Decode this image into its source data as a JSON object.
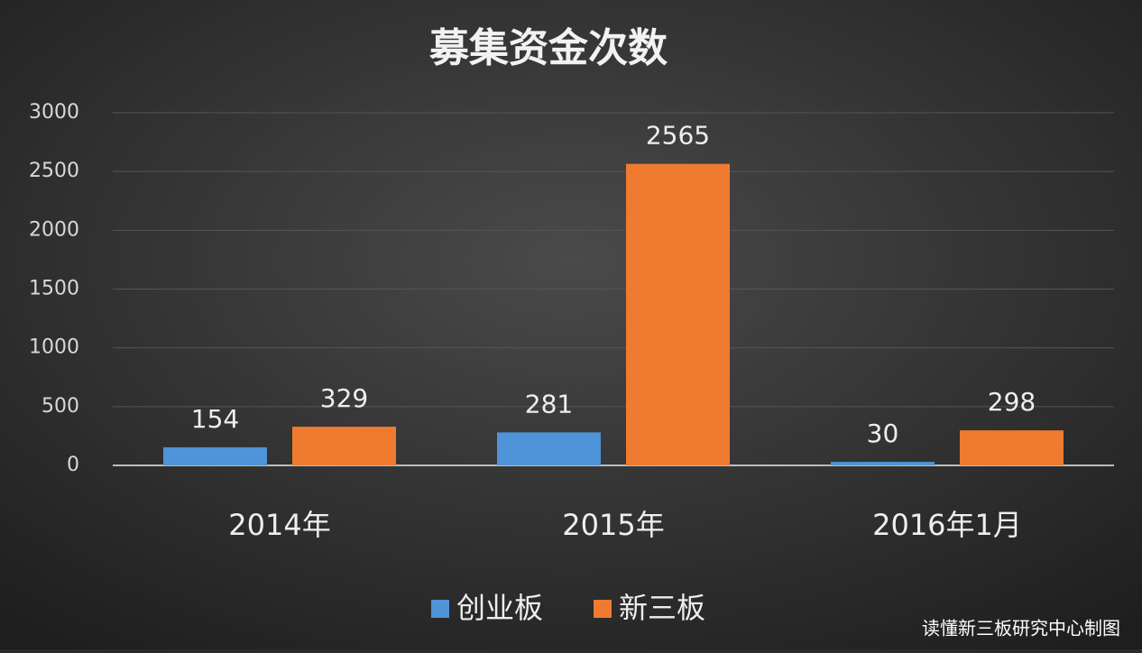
{
  "chart_data": {
    "type": "bar",
    "title": "募集资金次数",
    "categories": [
      "2014年",
      "2015年",
      "2016年1月"
    ],
    "series": [
      {
        "name": "创业板",
        "color": "#4f93d8",
        "values": [
          154,
          281,
          30
        ]
      },
      {
        "name": "新三板",
        "color": "#ee7b30",
        "values": [
          329,
          2565,
          298
        ]
      }
    ],
    "ylim": [
      0,
      3000
    ],
    "yticks": [
      0,
      500,
      1000,
      1500,
      2000,
      2500,
      3000
    ],
    "grid": true,
    "legend": "bottom",
    "source": "读懂新三板研究中心制图"
  }
}
